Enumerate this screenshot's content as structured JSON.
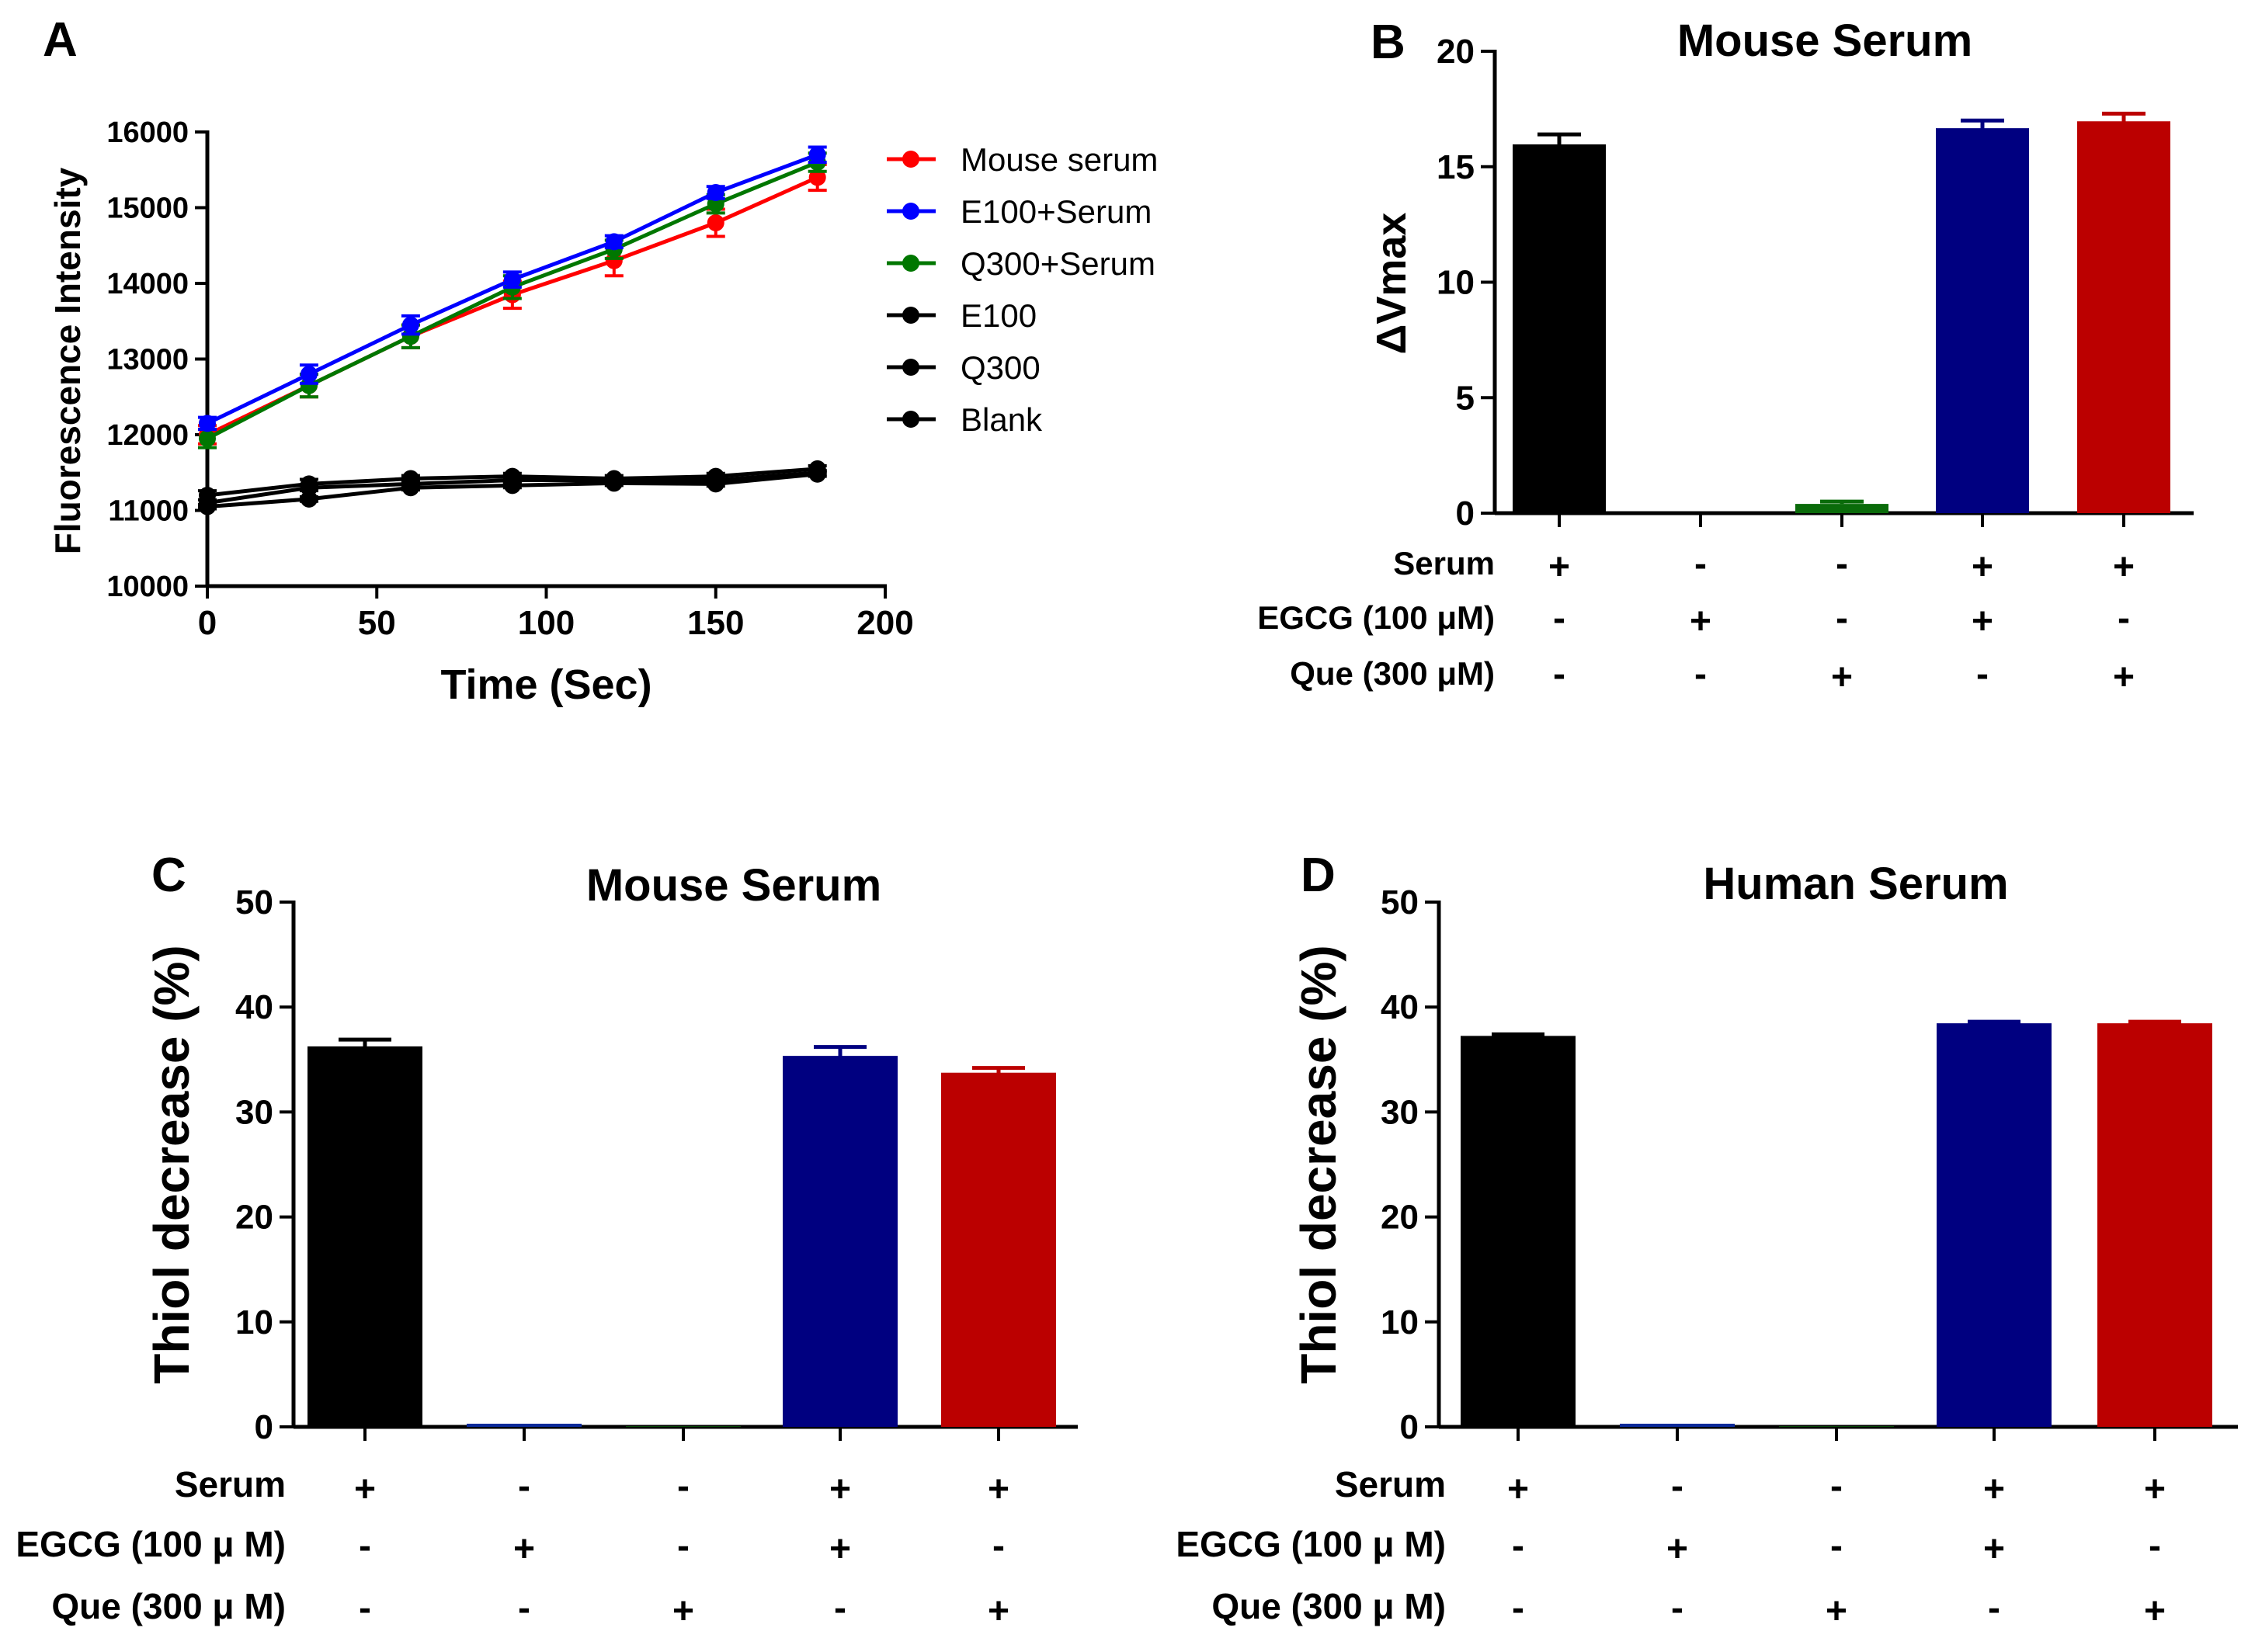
{
  "chart_data": [
    {
      "panel": "A",
      "type": "line",
      "title": "",
      "xlabel": "Time (Sec)",
      "ylabel": "Fluorescence Intensity",
      "xlim": [
        0,
        200
      ],
      "ylim": [
        10000,
        16000
      ],
      "xticks": [
        "0",
        "50",
        "100",
        "150",
        "200"
      ],
      "yticks": [
        "10000",
        "11000",
        "12000",
        "13000",
        "14000",
        "15000",
        "16000"
      ],
      "x": [
        0,
        30,
        60,
        90,
        120,
        150,
        180
      ],
      "series": [
        {
          "name": "Mouse serum",
          "color": "#ff0000",
          "values": [
            12000,
            12650,
            13300,
            13850,
            14300,
            14800,
            15400
          ],
          "errors": [
            120,
            150,
            150,
            180,
            200,
            180,
            170
          ]
        },
        {
          "name": "E100+Serum",
          "color": "#0000ff",
          "values": [
            12150,
            12800,
            13450,
            14050,
            14550,
            15200,
            15700
          ],
          "errors": [
            80,
            120,
            120,
            100,
            80,
            80,
            100
          ]
        },
        {
          "name": "Q300+Serum",
          "color": "#007700",
          "values": [
            11950,
            12650,
            13300,
            13950,
            14450,
            15050,
            15600
          ],
          "errors": [
            120,
            150,
            150,
            150,
            120,
            120,
            120
          ]
        },
        {
          "name": "E100",
          "color": "#000000",
          "values": [
            11200,
            11350,
            11420,
            11450,
            11420,
            11450,
            11550
          ],
          "errors": [
            60,
            60,
            40,
            40,
            40,
            40,
            40
          ]
        },
        {
          "name": "Q300",
          "color": "#000000",
          "values": [
            11100,
            11300,
            11350,
            11400,
            11400,
            11400,
            11500
          ],
          "errors": [
            40,
            40,
            40,
            40,
            30,
            30,
            30
          ]
        },
        {
          "name": "Blank",
          "color": "#000000",
          "values": [
            11050,
            11150,
            11300,
            11330,
            11360,
            11350,
            11480
          ],
          "errors": [
            30,
            30,
            30,
            30,
            30,
            30,
            30
          ]
        }
      ]
    },
    {
      "panel": "B",
      "type": "bar",
      "title": "Mouse Serum",
      "xlabel": "",
      "ylabel": "ΔVmax",
      "ylim": [
        0,
        20
      ],
      "yticks": [
        "0",
        "5",
        "10",
        "15",
        "20"
      ],
      "values": [
        15.9,
        0,
        0.4,
        16.6,
        16.9
      ],
      "errors": [
        0.5,
        0,
        0.1,
        0.4,
        0.4
      ],
      "colors": [
        "#000000",
        "#000000",
        "#0a6b0a",
        "#000080",
        "#bb0000"
      ],
      "conditions": [
        {
          "label": "Serum",
          "signs": [
            "+",
            "-",
            "-",
            "+",
            "+"
          ]
        },
        {
          "label": "EGCG (100 μM)",
          "signs": [
            "-",
            "+",
            "-",
            "+",
            "-"
          ]
        },
        {
          "label": "Que (300 μM)",
          "signs": [
            "-",
            "-",
            "+",
            "-",
            "+"
          ]
        }
      ]
    },
    {
      "panel": "C",
      "type": "bar",
      "title": "Mouse Serum",
      "xlabel": "",
      "ylabel": "Thiol decrease (%)",
      "ylim": [
        0,
        50
      ],
      "yticks": [
        "0",
        "10",
        "20",
        "30",
        "40",
        "50"
      ],
      "values": [
        36.1,
        0.3,
        0.05,
        35.2,
        33.6
      ],
      "errors": [
        0.8,
        0,
        0,
        1.0,
        0.6
      ],
      "colors": [
        "#000000",
        "#0a2a9a",
        "#0a6b0a",
        "#000080",
        "#bb0000"
      ],
      "conditions": [
        {
          "label": "Serum",
          "signs": [
            "+",
            "-",
            "-",
            "+",
            "+"
          ]
        },
        {
          "label": "EGCG (100 μ M)",
          "signs": [
            "-",
            "+",
            "-",
            "+",
            "-"
          ]
        },
        {
          "label": "Que (300 μ M)",
          "signs": [
            "-",
            "-",
            "+",
            "-",
            "+"
          ]
        }
      ]
    },
    {
      "panel": "D",
      "type": "bar",
      "title": "Human Serum",
      "xlabel": "",
      "ylabel": "Thiol decrease (%)",
      "ylim": [
        0,
        50
      ],
      "yticks": [
        "0",
        "10",
        "20",
        "30",
        "40",
        "50"
      ],
      "values": [
        37.1,
        0.3,
        0.05,
        38.3,
        38.3
      ],
      "errors": [
        0.3,
        0,
        0,
        0.3,
        0.3
      ],
      "colors": [
        "#000000",
        "#0a2a9a",
        "#0a6b0a",
        "#000080",
        "#bb0000"
      ],
      "conditions": [
        {
          "label": "Serum",
          "signs": [
            "+",
            "-",
            "-",
            "+",
            "+"
          ]
        },
        {
          "label": "EGCG (100 μ M)",
          "signs": [
            "-",
            "+",
            "-",
            "+",
            "-"
          ]
        },
        {
          "label": "Que (300 μ M)",
          "signs": [
            "-",
            "-",
            "+",
            "-",
            "+"
          ]
        }
      ]
    }
  ]
}
